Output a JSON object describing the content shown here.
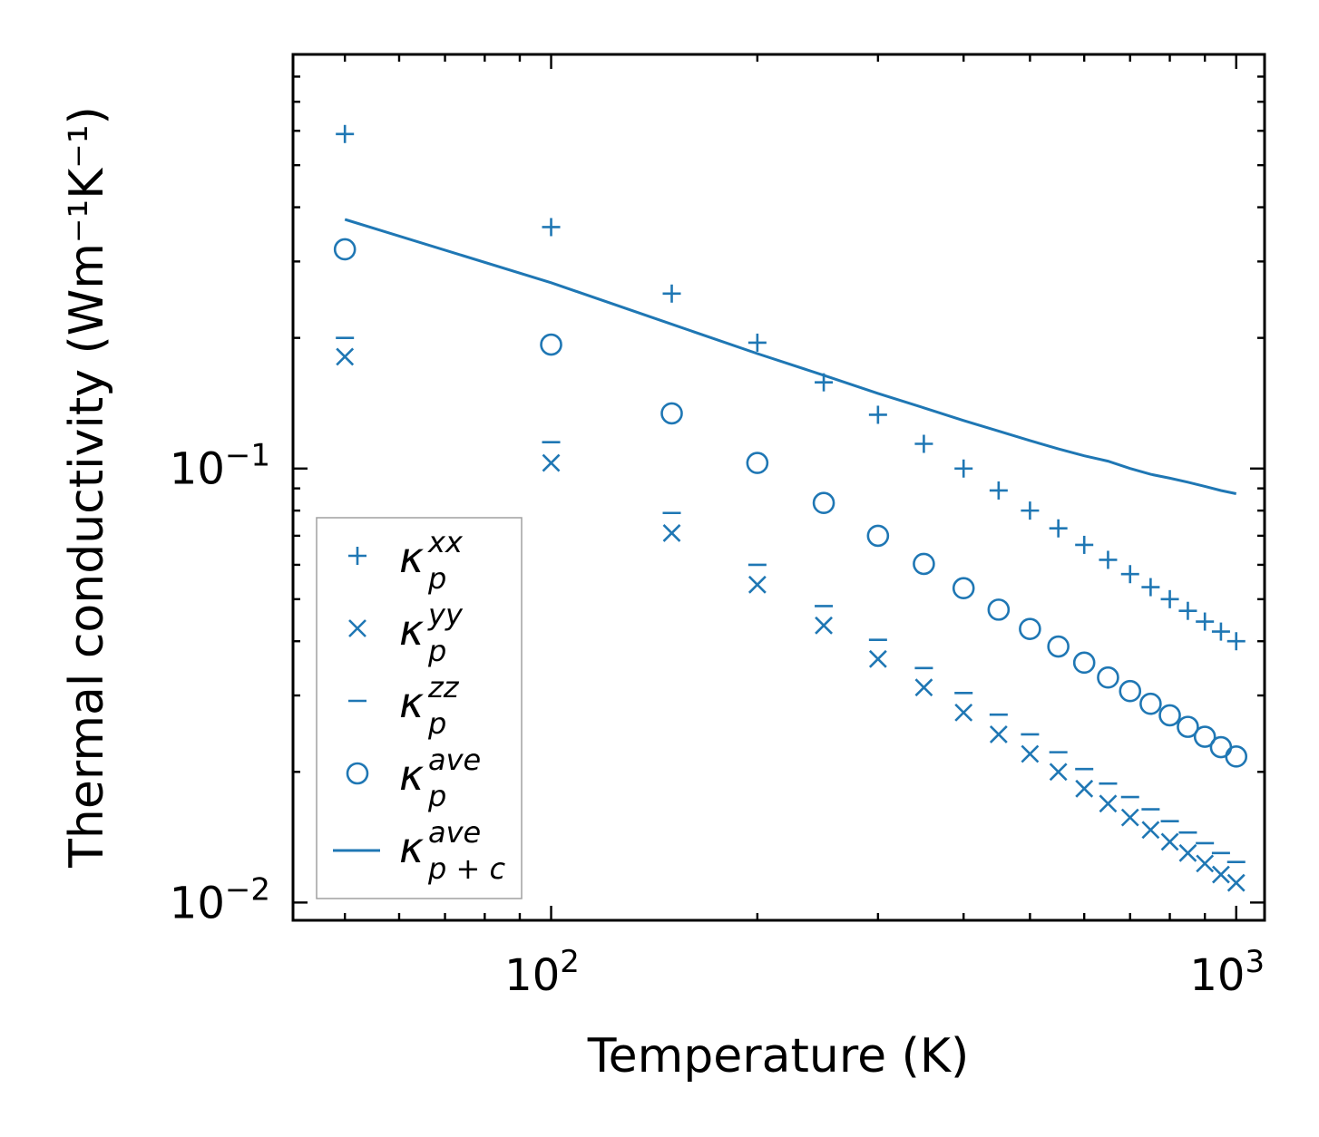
{
  "chart_data": {
    "type": "scatter",
    "title": "",
    "xlabel": "Temperature (K)",
    "ylabel": "Thermal conductivity (Wm⁻¹K⁻¹)",
    "xscale": "log",
    "yscale": "log",
    "xlim": [
      42,
      1100
    ],
    "ylim": [
      0.0091,
      0.9
    ],
    "x_ticks": [
      {
        "value": 100,
        "base": "10",
        "exp": "2"
      },
      {
        "value": 1000,
        "base": "10",
        "exp": "3"
      }
    ],
    "y_ticks": [
      {
        "value": 0.01,
        "base": "10",
        "exp": "−2"
      },
      {
        "value": 0.1,
        "base": "10",
        "exp": "−1"
      }
    ],
    "grid": false,
    "legend_position": "lower-left",
    "color": "#1f77b4",
    "x": [
      50,
      100,
      150,
      200,
      250,
      300,
      350,
      400,
      450,
      500,
      550,
      600,
      650,
      700,
      750,
      800,
      850,
      900,
      950,
      1000
    ],
    "series": [
      {
        "name": "kappa_p^xx",
        "symbol": "κ",
        "sub": "p",
        "sup": "xx",
        "marker": "plus",
        "values": [
          0.59,
          0.36,
          0.253,
          0.195,
          0.158,
          0.133,
          0.114,
          0.1,
          0.089,
          0.08,
          0.0728,
          0.0667,
          0.0616,
          0.0571,
          0.0533,
          0.05,
          0.047,
          0.0444,
          0.0421,
          0.04
        ]
      },
      {
        "name": "kappa_p^yy",
        "symbol": "κ",
        "sub": "p",
        "sup": "yy",
        "marker": "x",
        "values": [
          0.181,
          0.103,
          0.071,
          0.054,
          0.0435,
          0.0364,
          0.0313,
          0.0274,
          0.0244,
          0.022,
          0.02,
          0.0183,
          0.0169,
          0.0157,
          0.0147,
          0.0138,
          0.013,
          0.0123,
          0.0116,
          0.0111
        ]
      },
      {
        "name": "kappa_p^zz",
        "symbol": "κ",
        "sub": "p",
        "sup": "zz",
        "marker": "hline",
        "values": [
          0.2,
          0.115,
          0.079,
          0.06,
          0.0482,
          0.0403,
          0.0347,
          0.0304,
          0.0271,
          0.0244,
          0.0222,
          0.0203,
          0.0188,
          0.0175,
          0.0164,
          0.0154,
          0.0145,
          0.0137,
          0.013,
          0.0124
        ]
      },
      {
        "name": "kappa_p^ave",
        "symbol": "κ",
        "sub": "p",
        "sup": "ave",
        "marker": "circle",
        "values": [
          0.32,
          0.193,
          0.134,
          0.103,
          0.0833,
          0.07,
          0.0603,
          0.053,
          0.0473,
          0.0427,
          0.0389,
          0.0357,
          0.033,
          0.0307,
          0.0287,
          0.027,
          0.0254,
          0.0241,
          0.0228,
          0.0217
        ]
      },
      {
        "name": "kappa_p+c^ave",
        "symbol": "κ",
        "sub": "p + c",
        "sup": "ave",
        "marker": "line",
        "values": [
          0.375,
          0.268,
          0.215,
          0.184,
          0.164,
          0.149,
          0.138,
          0.129,
          0.122,
          0.116,
          0.111,
          0.107,
          0.104,
          0.1,
          0.097,
          0.095,
          0.093,
          0.091,
          0.089,
          0.0875
        ]
      }
    ]
  }
}
